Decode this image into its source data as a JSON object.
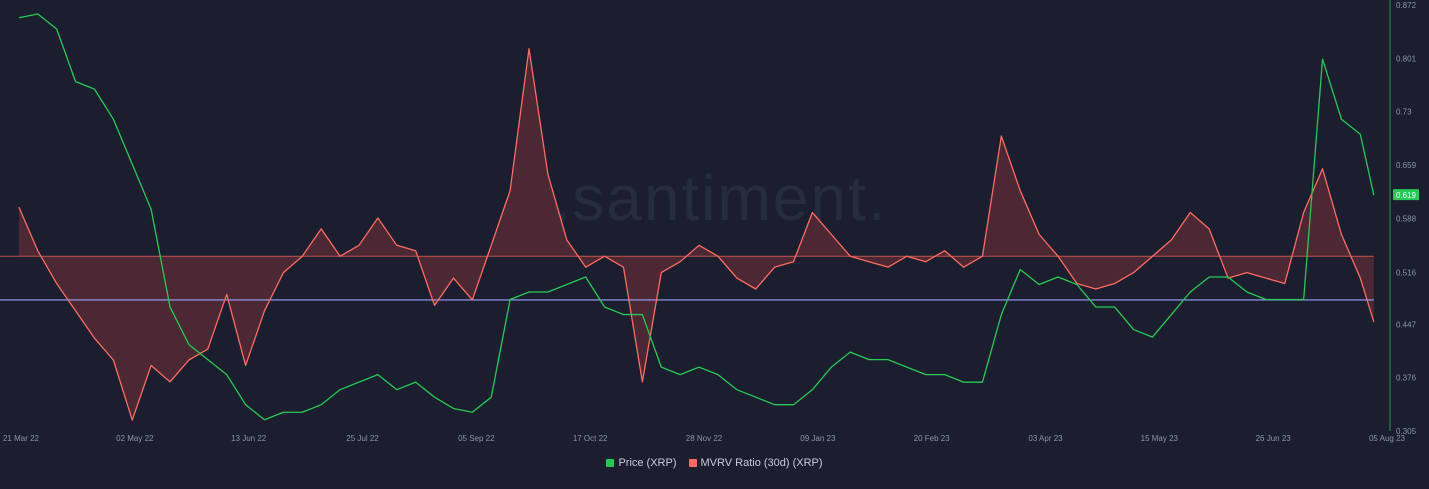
{
  "watermark": ".santiment.",
  "colors": {
    "background": "#1b1e2f",
    "price": "#26c953",
    "mvrv": "#ff6b61",
    "mvrv_fill": "#5c2c35",
    "baseline": "#9aa3ff",
    "axis_text": "#8d93a8",
    "axis_line": "#2f8f4a",
    "price_badge": "#26c953"
  },
  "chart_data": {
    "type": "line",
    "xlabel": "",
    "ylabel": "",
    "x_ticks": [
      "21 Mar 22",
      "02 May 22",
      "13 Jun 22",
      "25 Jul 22",
      "05 Sep 22",
      "17 Oct 22",
      "28 Nov 22",
      "09 Jan 23",
      "20 Feb 23",
      "03 Apr 23",
      "15 May 23",
      "26 Jun 23",
      "05 Aug 23"
    ],
    "y_ticks": [
      "0.872",
      "0.801",
      "0.73",
      "0.659",
      "0.588",
      "0.516",
      "0.447",
      "0.376",
      "0.305"
    ],
    "ylim": [
      0.305,
      0.872
    ],
    "current_price": "0.619",
    "series": [
      {
        "name": "Price (XRP)",
        "axis": "right",
        "x": [
          "2022-03-21",
          "2022-03-28",
          "2022-04-04",
          "2022-04-11",
          "2022-04-18",
          "2022-04-25",
          "2022-05-02",
          "2022-05-09",
          "2022-05-16",
          "2022-05-23",
          "2022-05-30",
          "2022-06-06",
          "2022-06-13",
          "2022-06-20",
          "2022-06-27",
          "2022-07-04",
          "2022-07-11",
          "2022-07-18",
          "2022-07-25",
          "2022-08-01",
          "2022-08-08",
          "2022-08-15",
          "2022-08-22",
          "2022-08-29",
          "2022-09-05",
          "2022-09-12",
          "2022-09-19",
          "2022-09-26",
          "2022-10-03",
          "2022-10-10",
          "2022-10-17",
          "2022-10-24",
          "2022-10-31",
          "2022-11-07",
          "2022-11-14",
          "2022-11-21",
          "2022-11-28",
          "2022-12-05",
          "2022-12-12",
          "2022-12-19",
          "2022-12-26",
          "2023-01-02",
          "2023-01-09",
          "2023-01-16",
          "2023-01-23",
          "2023-01-30",
          "2023-02-06",
          "2023-02-13",
          "2023-02-20",
          "2023-02-27",
          "2023-03-06",
          "2023-03-13",
          "2023-03-20",
          "2023-03-27",
          "2023-04-03",
          "2023-04-10",
          "2023-04-17",
          "2023-04-24",
          "2023-05-01",
          "2023-05-08",
          "2023-05-15",
          "2023-05-22",
          "2023-05-29",
          "2023-06-05",
          "2023-06-12",
          "2023-06-19",
          "2023-06-26",
          "2023-07-03",
          "2023-07-10",
          "2023-07-17",
          "2023-07-24",
          "2023-07-31",
          "2023-08-05"
        ],
        "values": [
          0.855,
          0.86,
          0.84,
          0.77,
          0.76,
          0.72,
          0.66,
          0.6,
          0.47,
          0.42,
          0.4,
          0.38,
          0.34,
          0.32,
          0.33,
          0.33,
          0.34,
          0.36,
          0.37,
          0.38,
          0.36,
          0.37,
          0.35,
          0.335,
          0.33,
          0.35,
          0.48,
          0.49,
          0.49,
          0.5,
          0.51,
          0.47,
          0.46,
          0.46,
          0.39,
          0.38,
          0.39,
          0.38,
          0.36,
          0.35,
          0.34,
          0.34,
          0.36,
          0.39,
          0.41,
          0.4,
          0.4,
          0.39,
          0.38,
          0.38,
          0.37,
          0.37,
          0.46,
          0.52,
          0.5,
          0.51,
          0.5,
          0.47,
          0.47,
          0.44,
          0.43,
          0.46,
          0.49,
          0.51,
          0.51,
          0.49,
          0.48,
          0.48,
          0.48,
          0.8,
          0.72,
          0.7,
          0.619
        ]
      },
      {
        "name": "MVRV Ratio (30d) (XRP)",
        "axis": "hidden",
        "x": [
          "2022-03-21",
          "2022-03-28",
          "2022-04-04",
          "2022-04-11",
          "2022-04-18",
          "2022-04-25",
          "2022-05-02",
          "2022-05-09",
          "2022-05-16",
          "2022-05-23",
          "2022-05-30",
          "2022-06-06",
          "2022-06-13",
          "2022-06-20",
          "2022-06-27",
          "2022-07-04",
          "2022-07-11",
          "2022-07-18",
          "2022-07-25",
          "2022-08-01",
          "2022-08-08",
          "2022-08-15",
          "2022-08-22",
          "2022-08-29",
          "2022-09-05",
          "2022-09-12",
          "2022-09-19",
          "2022-09-26",
          "2022-10-03",
          "2022-10-10",
          "2022-10-17",
          "2022-10-24",
          "2022-10-31",
          "2022-11-07",
          "2022-11-14",
          "2022-11-21",
          "2022-11-28",
          "2022-12-05",
          "2022-12-12",
          "2022-12-19",
          "2022-12-26",
          "2023-01-02",
          "2023-01-09",
          "2023-01-16",
          "2023-01-23",
          "2023-01-30",
          "2023-02-06",
          "2023-02-13",
          "2023-02-20",
          "2023-02-27",
          "2023-03-06",
          "2023-03-13",
          "2023-03-20",
          "2023-03-27",
          "2023-04-03",
          "2023-04-10",
          "2023-04-17",
          "2023-04-24",
          "2023-05-01",
          "2023-05-08",
          "2023-05-15",
          "2023-05-22",
          "2023-05-29",
          "2023-06-05",
          "2023-06-12",
          "2023-06-19",
          "2023-06-26",
          "2023-07-03",
          "2023-07-10",
          "2023-07-17",
          "2023-07-24",
          "2023-07-31",
          "2023-08-05"
        ],
        "values": [
          1.13,
          1.05,
          0.99,
          0.94,
          0.89,
          0.85,
          0.74,
          0.84,
          0.81,
          0.85,
          0.87,
          0.97,
          0.84,
          0.94,
          1.01,
          1.04,
          1.09,
          1.04,
          1.06,
          1.11,
          1.06,
          1.05,
          0.95,
          1.0,
          0.96,
          1.06,
          1.16,
          1.42,
          1.19,
          1.07,
          1.02,
          1.04,
          1.02,
          0.81,
          1.01,
          1.03,
          1.06,
          1.04,
          1.0,
          0.98,
          1.02,
          1.03,
          1.12,
          1.08,
          1.04,
          1.03,
          1.02,
          1.04,
          1.03,
          1.05,
          1.02,
          1.04,
          1.26,
          1.16,
          1.08,
          1.04,
          0.99,
          0.98,
          0.99,
          1.01,
          1.04,
          1.07,
          1.12,
          1.09,
          1.0,
          1.01,
          1.0,
          0.99,
          1.12,
          1.2,
          1.08,
          1.0,
          0.92
        ]
      }
    ],
    "baseline_value": 0.96,
    "reference_line_value": 1.04,
    "legend": {
      "position": "bottom-center"
    }
  },
  "legend": {
    "price_label": "Price (XRP)",
    "mvrv_label": "MVRV Ratio (30d) (XRP)"
  }
}
